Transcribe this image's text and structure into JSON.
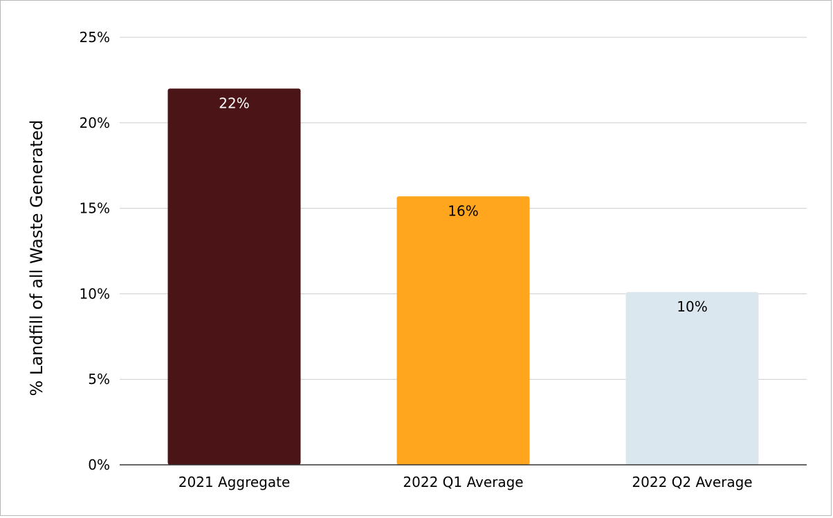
{
  "chart_data": {
    "type": "bar",
    "title": "",
    "xlabel": "",
    "ylabel": "% Landfill of all Waste Generated",
    "categories": [
      "2021 Aggregate",
      "2022 Q1 Average",
      "2022 Q2 Average"
    ],
    "values": [
      22,
      15.7,
      10.1
    ],
    "data_labels": [
      "22%",
      "16%",
      "10%"
    ],
    "bar_colors": [
      "#4b1518",
      "#ffa51e",
      "#dbe7ef"
    ],
    "label_colors": [
      "#ffffff",
      "#000000",
      "#000000"
    ],
    "ylim": [
      0,
      25
    ],
    "yticks": [
      0,
      5,
      10,
      15,
      20,
      25
    ],
    "ytick_labels": [
      "0%",
      "5%",
      "10%",
      "15%",
      "20%",
      "25%"
    ],
    "grid": true,
    "legend": "none"
  }
}
